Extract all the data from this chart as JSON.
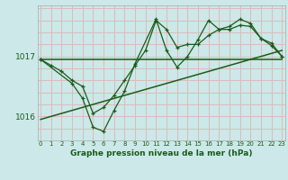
{
  "title": "Graphe pression niveau de la mer (hPa)",
  "background_color": "#cce8e8",
  "grid_color": "#ddbbbb",
  "line_color": "#1a5c1a",
  "ylabel_ticks": [
    1016,
    1017
  ],
  "x_labels": [
    "0",
    "1",
    "2",
    "3",
    "4",
    "5",
    "6",
    "7",
    "8",
    "9",
    "10",
    "11",
    "12",
    "13",
    "14",
    "15",
    "16",
    "17",
    "18",
    "19",
    "20",
    "21",
    "22",
    "23"
  ],
  "series1_x": [
    0,
    1,
    2,
    3,
    4,
    5,
    6,
    7,
    8,
    9,
    10,
    11,
    12,
    13,
    14,
    15,
    16,
    17,
    18,
    19,
    20,
    21,
    22,
    23
  ],
  "series1_y": [
    1016.95,
    1016.85,
    1016.75,
    1016.6,
    1016.5,
    1016.05,
    1016.15,
    1016.35,
    1016.6,
    1016.85,
    1017.1,
    1017.6,
    1017.45,
    1017.15,
    1017.2,
    1017.2,
    1017.35,
    1017.45,
    1017.45,
    1017.52,
    1017.5,
    1017.3,
    1017.22,
    1017.0
  ],
  "series2_x": [
    0,
    3,
    4,
    5,
    6,
    7,
    8,
    9,
    11,
    12,
    13,
    14,
    15,
    16,
    17,
    18,
    19,
    20,
    21,
    22,
    23
  ],
  "series2_y": [
    1016.95,
    1016.55,
    1016.3,
    1015.82,
    1015.75,
    1016.1,
    1016.42,
    1016.88,
    1017.62,
    1017.1,
    1016.82,
    1017.0,
    1017.28,
    1017.6,
    1017.45,
    1017.5,
    1017.62,
    1017.55,
    1017.3,
    1017.18,
    1017.0
  ],
  "trend1_x": [
    0,
    23
  ],
  "trend1_y": [
    1016.95,
    1016.95
  ],
  "trend2_x": [
    0,
    23
  ],
  "trend2_y": [
    1015.95,
    1017.1
  ],
  "ylim": [
    1015.6,
    1017.85
  ],
  "xlim": [
    -0.3,
    23.3
  ]
}
